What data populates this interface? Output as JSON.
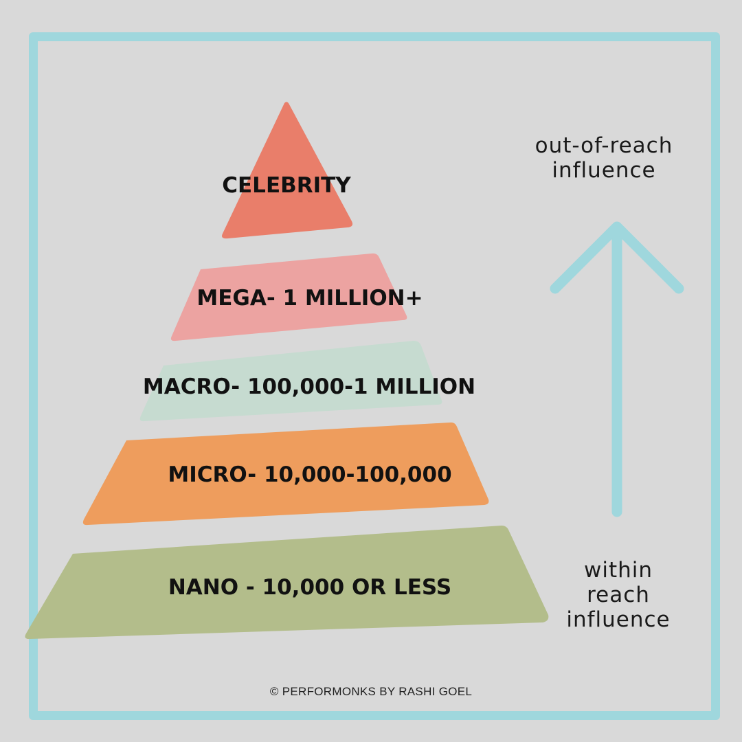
{
  "colors": {
    "frame": "#9fd7dd",
    "background": "#d9d9d9",
    "arrow": "#9fd7dd",
    "text": "#111111"
  },
  "pyramid": {
    "tiers": [
      {
        "label": "CELEBRITY",
        "color": "#e97e6a"
      },
      {
        "label": "MEGA- 1 MILLION+",
        "color": "#eca3a1"
      },
      {
        "label": "MACRO- 100,000-1 MILLION",
        "color": "#c6dbd0"
      },
      {
        "label": "MICRO- 10,000-100,000",
        "color": "#ee9d5d"
      },
      {
        "label": "NANO - 10,000 OR LESS",
        "color": "#b3bd8b"
      }
    ]
  },
  "scale": {
    "top_label": {
      "line1": "out-of-reach",
      "line2": "influence"
    },
    "bottom_label": {
      "line1": "within reach",
      "line2": "influence"
    },
    "arrow_icon": "arrow-up-icon"
  },
  "footer": {
    "copyright": "© PERFORMONKS BY RASHI GOEL"
  }
}
